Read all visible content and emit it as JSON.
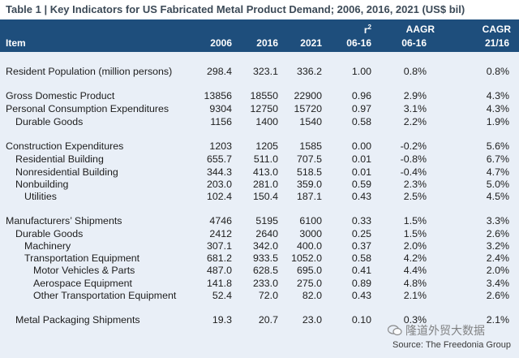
{
  "title": "Table 1 | Key Indicators for US Fabricated Metal Product Demand; 2006, 2016, 2021 (US$ bil)",
  "header": {
    "item": "Item",
    "y2006": "2006",
    "y2016": "2016",
    "y2021": "2021",
    "r2_symbol": "r",
    "r2_sup": "2",
    "r2_period": "06-16",
    "aagr": "AAGR",
    "aagr_period": "06-16",
    "cagr": "CAGR",
    "cagr_period": "21/16"
  },
  "rows": [
    {
      "label": "Resident Population (million persons)",
      "v2006": "298.4",
      "v2016": "323.1",
      "v2021": "336.2",
      "r2": "1.00",
      "aagr": "0.8%",
      "cagr": "0.8%"
    },
    {
      "label": "Gross Domestic Product",
      "v2006": "13856",
      "v2016": "18550",
      "v2021": "22900",
      "r2": "0.96",
      "aagr": "2.9%",
      "cagr": "4.3%"
    },
    {
      "label": "Personal Consumption Expenditures",
      "v2006": "9304",
      "v2016": "12750",
      "v2021": "15720",
      "r2": "0.97",
      "aagr": "3.1%",
      "cagr": "4.3%"
    },
    {
      "label": "Durable Goods",
      "v2006": "1156",
      "v2016": "1400",
      "v2021": "1540",
      "r2": "0.58",
      "aagr": "2.2%",
      "cagr": "1.9%"
    },
    {
      "label": "Construction Expenditures",
      "v2006": "1203",
      "v2016": "1205",
      "v2021": "1585",
      "r2": "0.00",
      "aagr": "-0.2%",
      "cagr": "5.6%"
    },
    {
      "label": "Residential Building",
      "v2006": "655.7",
      "v2016": "511.0",
      "v2021": "707.5",
      "r2": "0.01",
      "aagr": "-0.8%",
      "cagr": "6.7%"
    },
    {
      "label": "Nonresidential Building",
      "v2006": "344.3",
      "v2016": "413.0",
      "v2021": "518.5",
      "r2": "0.01",
      "aagr": "-0.4%",
      "cagr": "4.7%"
    },
    {
      "label": "Nonbuilding",
      "v2006": "203.0",
      "v2016": "281.0",
      "v2021": "359.0",
      "r2": "0.59",
      "aagr": "2.3%",
      "cagr": "5.0%"
    },
    {
      "label": "Utilities",
      "v2006": "102.4",
      "v2016": "150.4",
      "v2021": "187.1",
      "r2": "0.43",
      "aagr": "2.5%",
      "cagr": "4.5%"
    },
    {
      "label": "Manufacturers’ Shipments",
      "v2006": "4746",
      "v2016": "5195",
      "v2021": "6100",
      "r2": "0.33",
      "aagr": "1.5%",
      "cagr": "3.3%"
    },
    {
      "label": "Durable Goods",
      "v2006": "2412",
      "v2016": "2640",
      "v2021": "3000",
      "r2": "0.25",
      "aagr": "1.5%",
      "cagr": "2.6%"
    },
    {
      "label": "Machinery",
      "v2006": "307.1",
      "v2016": "342.0",
      "v2021": "400.0",
      "r2": "0.37",
      "aagr": "2.0%",
      "cagr": "3.2%"
    },
    {
      "label": "Transportation Equipment",
      "v2006": "681.2",
      "v2016": "933.5",
      "v2021": "1052.0",
      "r2": "0.58",
      "aagr": "4.2%",
      "cagr": "2.4%"
    },
    {
      "label": "Motor Vehicles & Parts",
      "v2006": "487.0",
      "v2016": "628.5",
      "v2021": "695.0",
      "r2": "0.41",
      "aagr": "4.4%",
      "cagr": "2.0%"
    },
    {
      "label": "Aerospace Equipment",
      "v2006": "141.8",
      "v2016": "233.0",
      "v2021": "275.0",
      "r2": "0.89",
      "aagr": "4.8%",
      "cagr": "3.4%"
    },
    {
      "label": "Other Transportation Equipment",
      "v2006": "52.4",
      "v2016": "72.0",
      "v2021": "82.0",
      "r2": "0.43",
      "aagr": "2.1%",
      "cagr": "2.6%"
    },
    {
      "label": "Metal Packaging Shipments",
      "v2006": "19.3",
      "v2016": "20.7",
      "v2021": "23.0",
      "r2": "0.10",
      "aagr": "0.3%",
      "cagr": "2.1%"
    }
  ],
  "source": "Source: The Freedonia Group",
  "watermark": "隆道外贸大数据",
  "colors": {
    "header_bg": "#1e4e7c",
    "body_bg": "#e9eff7",
    "title_text": "#3c4a57"
  }
}
